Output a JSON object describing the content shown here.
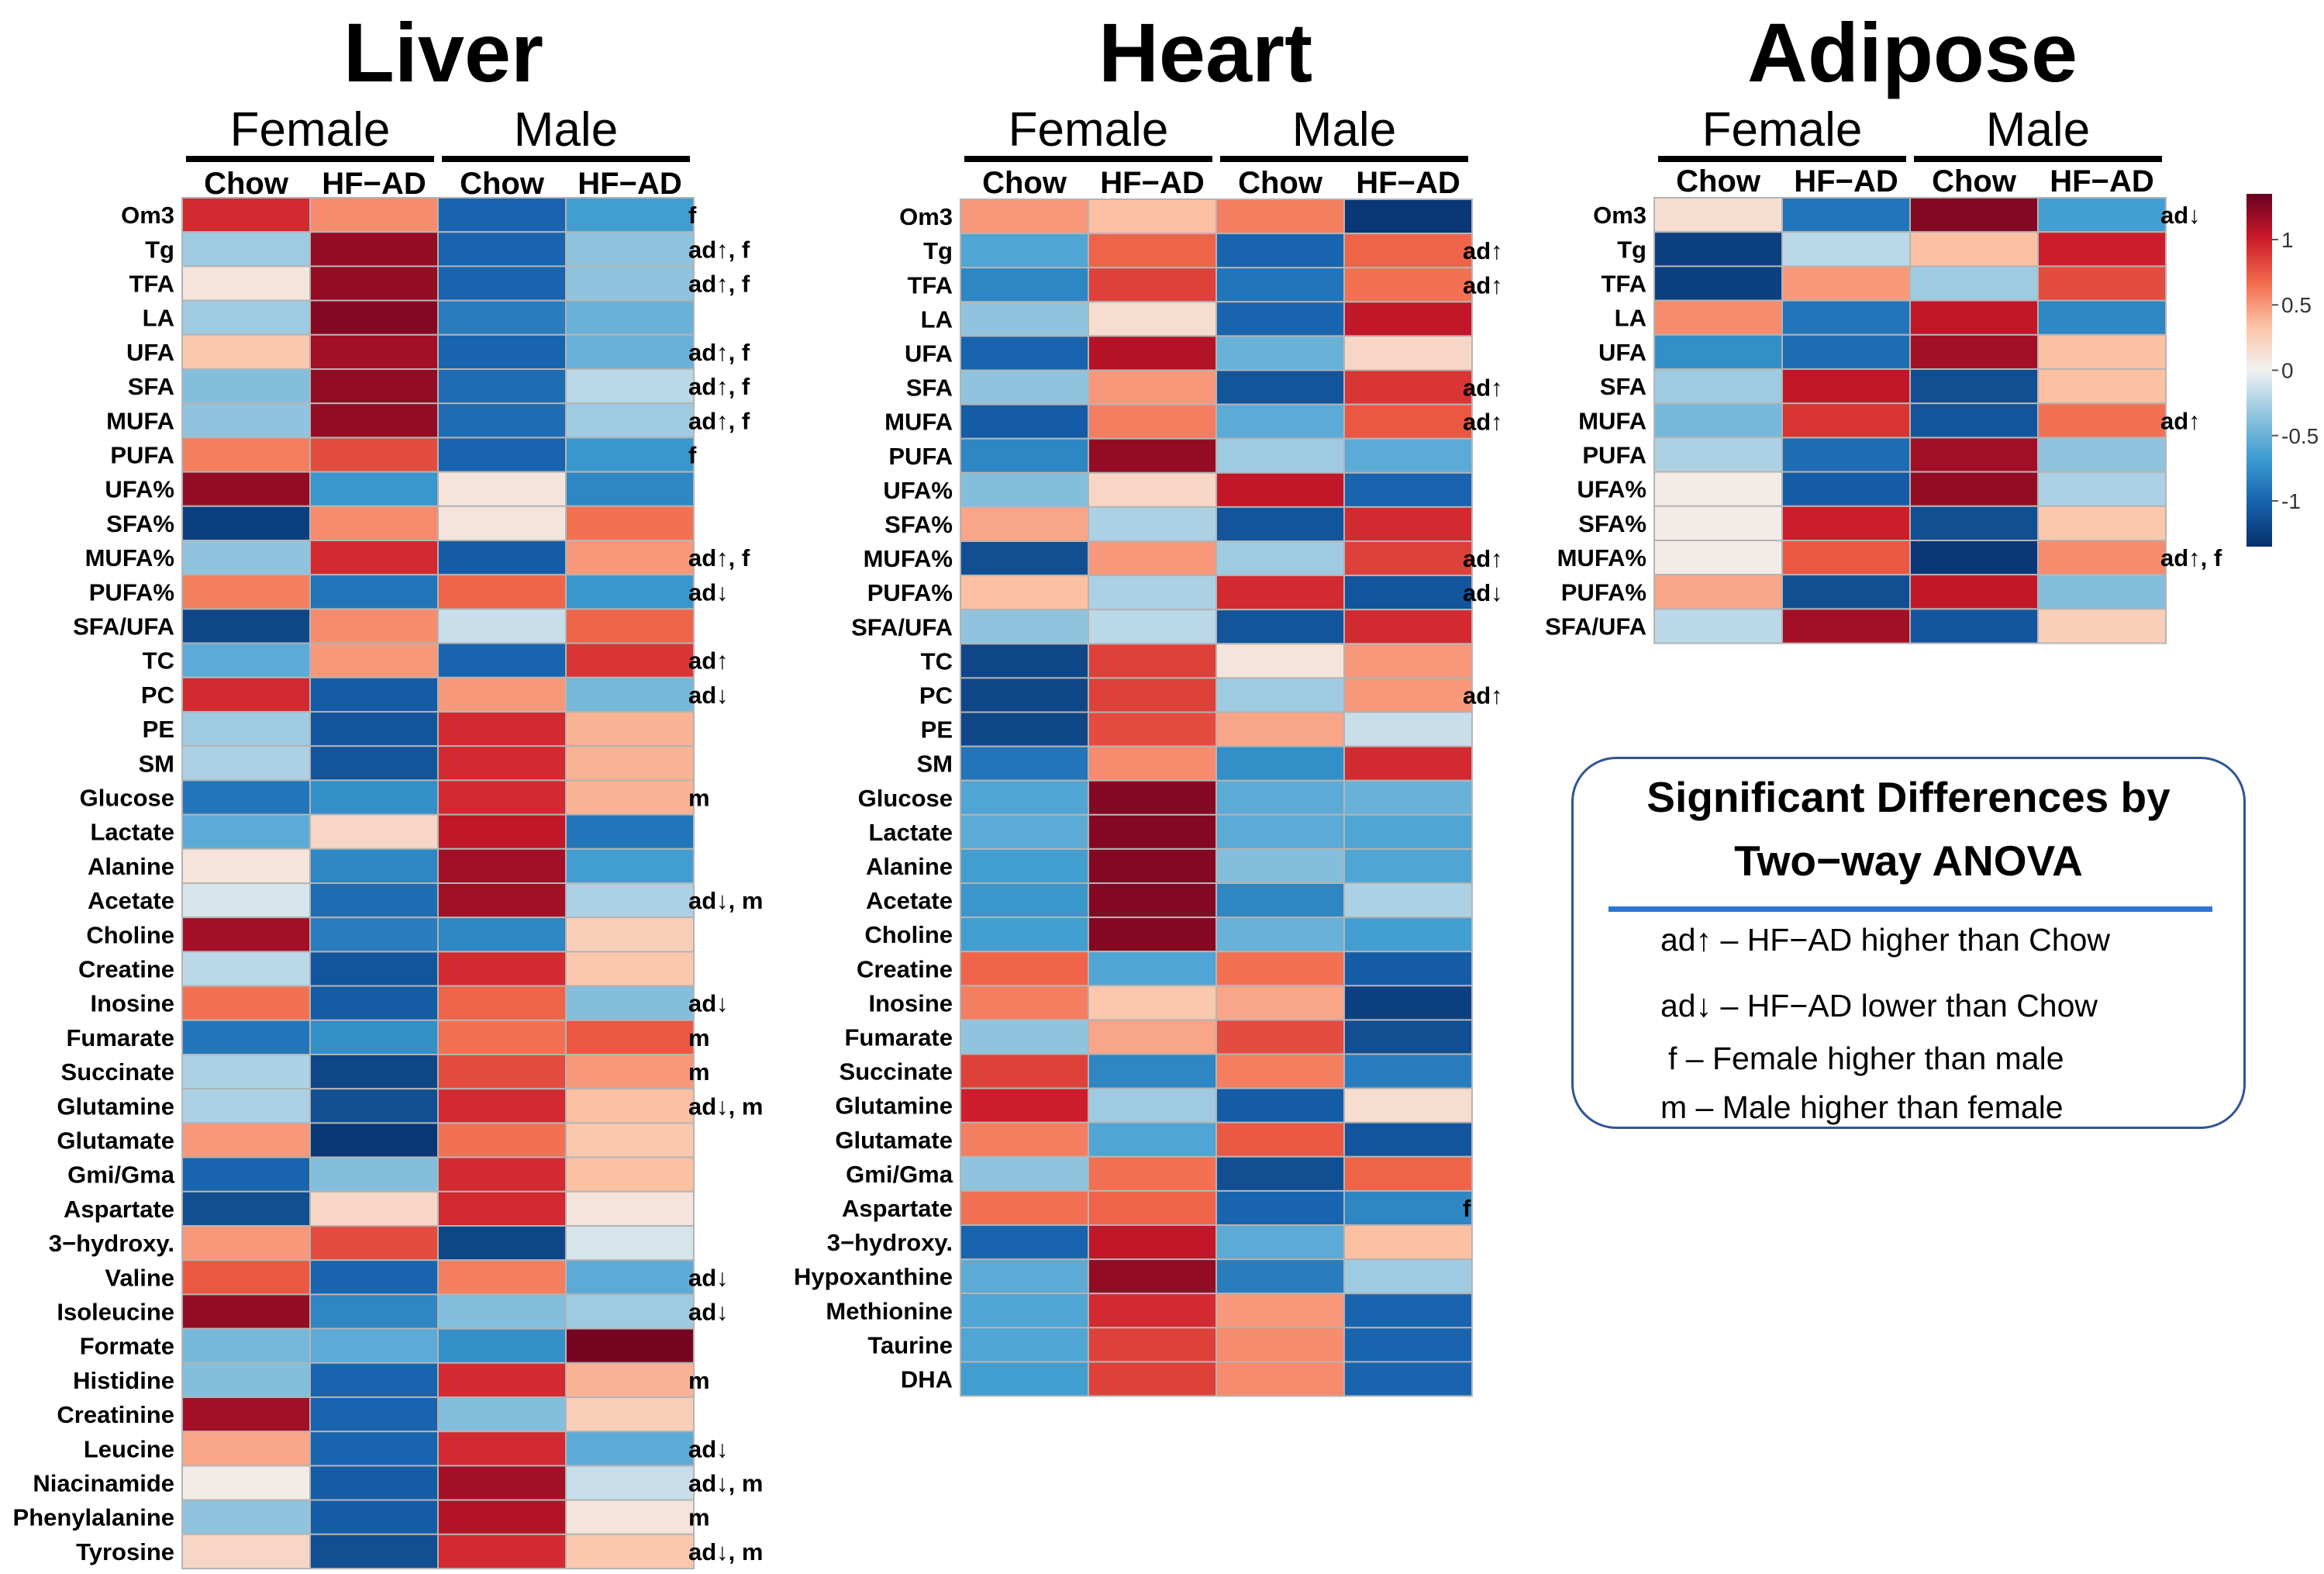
{
  "chart_data": {
    "type": "heatmap",
    "color_scale": {
      "ticks": [
        1,
        0.5,
        0,
        -0.5,
        -1
      ],
      "tick_labels": [
        "1",
        "0.5",
        "0",
        "-0.5",
        "-1"
      ],
      "range": [
        -1.35,
        1.35
      ],
      "colors": [
        "#08306b",
        "#1762ad",
        "#3c9bd0",
        "#93c6df",
        "#f2f2f2",
        "#fcc3a6",
        "#f26a4c",
        "#cc1a2a",
        "#67001f"
      ]
    },
    "panels": [
      {
        "title": "Liver",
        "groups": [
          "Female",
          "Male"
        ],
        "columns": [
          "Chow",
          "HF−AD",
          "Chow",
          "HF−AD"
        ],
        "rows": [
          {
            "label": "Om3",
            "values": [
              0.95,
              0.55,
              -1.0,
              -0.65
            ],
            "sig": "f"
          },
          {
            "label": "Tg",
            "values": [
              -0.3,
              1.2,
              -1.0,
              -0.35
            ],
            "sig": "ad↑, f"
          },
          {
            "label": "TFA",
            "values": [
              0.1,
              1.2,
              -1.0,
              -0.35
            ],
            "sig": "ad↑, f"
          },
          {
            "label": "LA",
            "values": [
              -0.3,
              1.25,
              -0.85,
              -0.5
            ],
            "sig": ""
          },
          {
            "label": "UFA",
            "values": [
              0.3,
              1.15,
              -1.0,
              -0.5
            ],
            "sig": "ad↑, f"
          },
          {
            "label": "SFA",
            "values": [
              -0.4,
              1.2,
              -0.95,
              -0.2
            ],
            "sig": "ad↑, f"
          },
          {
            "label": "MUFA",
            "values": [
              -0.35,
              1.2,
              -0.95,
              -0.3
            ],
            "sig": "ad↑, f"
          },
          {
            "label": "PUFA",
            "values": [
              0.6,
              0.8,
              -1.0,
              -0.7
            ],
            "sig": "f"
          },
          {
            "label": "UFA%",
            "values": [
              1.2,
              -0.7,
              0.1,
              -0.8
            ],
            "sig": ""
          },
          {
            "label": "SFA%",
            "values": [
              -1.25,
              0.55,
              0.1,
              0.65
            ],
            "sig": ""
          },
          {
            "label": "MUFA%",
            "values": [
              -0.35,
              0.95,
              -1.05,
              0.5
            ],
            "sig": "ad↑, f"
          },
          {
            "label": "PUFA%",
            "values": [
              0.6,
              -0.9,
              0.7,
              -0.7
            ],
            "sig": "ad↓"
          },
          {
            "label": "SFA/UFA",
            "values": [
              -1.2,
              0.55,
              -0.15,
              0.7
            ],
            "sig": ""
          },
          {
            "label": "TC",
            "values": [
              -0.55,
              0.5,
              -1.0,
              0.9
            ],
            "sig": "ad↑"
          },
          {
            "label": "PC",
            "values": [
              0.95,
              -1.05,
              0.5,
              -0.45
            ],
            "sig": "ad↓"
          },
          {
            "label": "PE",
            "values": [
              -0.3,
              -1.1,
              0.95,
              0.4
            ],
            "sig": ""
          },
          {
            "label": "SM",
            "values": [
              -0.25,
              -1.1,
              0.95,
              0.4
            ],
            "sig": ""
          },
          {
            "label": "Glucose",
            "values": [
              -0.9,
              -0.75,
              0.95,
              0.4
            ],
            "sig": "m"
          },
          {
            "label": "Lactate",
            "values": [
              -0.55,
              0.2,
              1.05,
              -0.9
            ],
            "sig": ""
          },
          {
            "label": "Alanine",
            "values": [
              0.1,
              -0.8,
              1.15,
              -0.65
            ],
            "sig": ""
          },
          {
            "label": "Acetate",
            "values": [
              -0.1,
              -0.95,
              1.15,
              -0.25
            ],
            "sig": "ad↓, m"
          },
          {
            "label": "Choline",
            "values": [
              1.15,
              -0.85,
              -0.8,
              0.25
            ],
            "sig": ""
          },
          {
            "label": "Creatine",
            "values": [
              -0.2,
              -1.1,
              0.95,
              0.3
            ],
            "sig": ""
          },
          {
            "label": "Inosine",
            "values": [
              0.65,
              -1.05,
              0.7,
              -0.4
            ],
            "sig": "ad↓"
          },
          {
            "label": "Fumarate",
            "values": [
              -0.9,
              -0.75,
              0.65,
              0.75
            ],
            "sig": "m"
          },
          {
            "label": "Succinate",
            "values": [
              -0.25,
              -1.2,
              0.8,
              0.5
            ],
            "sig": "m"
          },
          {
            "label": "Glutamine",
            "values": [
              -0.25,
              -1.15,
              0.95,
              0.35
            ],
            "sig": "ad↓, m"
          },
          {
            "label": "Glutamate",
            "values": [
              0.5,
              -1.3,
              0.65,
              0.3
            ],
            "sig": ""
          },
          {
            "label": "Gmi/Gma",
            "values": [
              -1.0,
              -0.4,
              0.95,
              0.35
            ],
            "sig": ""
          },
          {
            "label": "Aspartate",
            "values": [
              -1.15,
              0.2,
              0.95,
              0.1
            ],
            "sig": ""
          },
          {
            "label": "3−hydroxy.",
            "values": [
              0.5,
              0.8,
              -1.2,
              -0.1
            ],
            "sig": ""
          },
          {
            "label": "Valine",
            "values": [
              0.75,
              -1.0,
              0.6,
              -0.55
            ],
            "sig": "ad↓"
          },
          {
            "label": "Isoleucine",
            "values": [
              1.2,
              -0.8,
              -0.4,
              -0.3
            ],
            "sig": "ad↓"
          },
          {
            "label": "Formate",
            "values": [
              -0.45,
              -0.55,
              -0.75,
              1.3
            ],
            "sig": ""
          },
          {
            "label": "Histidine",
            "values": [
              -0.4,
              -1.0,
              0.95,
              0.4
            ],
            "sig": "m"
          },
          {
            "label": "Creatinine",
            "values": [
              1.15,
              -1.0,
              -0.4,
              0.25
            ],
            "sig": ""
          },
          {
            "label": "Leucine",
            "values": [
              0.45,
              -1.0,
              0.95,
              -0.55
            ],
            "sig": "ad↓"
          },
          {
            "label": "Niacinamide",
            "values": [
              0.05,
              -1.05,
              1.15,
              -0.15
            ],
            "sig": "ad↓, m"
          },
          {
            "label": "Phenylalanine",
            "values": [
              -0.35,
              -1.05,
              1.1,
              0.1
            ],
            "sig": "m"
          },
          {
            "label": "Tyrosine",
            "values": [
              0.2,
              -1.15,
              0.95,
              0.3
            ],
            "sig": "ad↓, m"
          }
        ]
      },
      {
        "title": "Heart",
        "groups": [
          "Female",
          "Male"
        ],
        "columns": [
          "Chow",
          "HF−AD",
          "Chow",
          "HF−AD"
        ],
        "rows": [
          {
            "label": "Om3",
            "values": [
              0.5,
              0.35,
              0.6,
              -1.3
            ],
            "sig": ""
          },
          {
            "label": "Tg",
            "values": [
              -0.6,
              0.7,
              -1.0,
              0.7
            ],
            "sig": "ad↑"
          },
          {
            "label": "TFA",
            "values": [
              -0.8,
              0.85,
              -0.9,
              0.65
            ],
            "sig": "ad↑"
          },
          {
            "label": "LA",
            "values": [
              -0.35,
              0.15,
              -1.0,
              1.05
            ],
            "sig": ""
          },
          {
            "label": "UFA",
            "values": [
              -1.0,
              1.1,
              -0.5,
              0.2
            ],
            "sig": ""
          },
          {
            "label": "SFA",
            "values": [
              -0.35,
              0.5,
              -1.1,
              0.9
            ],
            "sig": "ad↑"
          },
          {
            "label": "MUFA",
            "values": [
              -1.05,
              0.6,
              -0.55,
              0.75
            ],
            "sig": "ad↑"
          },
          {
            "label": "PUFA",
            "values": [
              -0.8,
              1.2,
              -0.3,
              -0.55
            ],
            "sig": ""
          },
          {
            "label": "UFA%",
            "values": [
              -0.4,
              0.2,
              1.05,
              -1.0
            ],
            "sig": ""
          },
          {
            "label": "SFA%",
            "values": [
              0.45,
              -0.25,
              -1.1,
              0.95
            ],
            "sig": ""
          },
          {
            "label": "MUFA%",
            "values": [
              -1.15,
              0.5,
              -0.3,
              0.85
            ],
            "sig": "ad↑"
          },
          {
            "label": "PUFA%",
            "values": [
              0.35,
              -0.25,
              0.95,
              -1.1
            ],
            "sig": "ad↓"
          },
          {
            "label": "SFA/UFA",
            "values": [
              -0.35,
              -0.2,
              -1.1,
              0.95
            ],
            "sig": ""
          },
          {
            "label": "TC",
            "values": [
              -1.2,
              0.85,
              0.1,
              0.5
            ],
            "sig": ""
          },
          {
            "label": "PC",
            "values": [
              -1.2,
              0.85,
              -0.3,
              0.5
            ],
            "sig": "ad↑"
          },
          {
            "label": "PE",
            "values": [
              -1.2,
              0.8,
              0.45,
              -0.15
            ],
            "sig": ""
          },
          {
            "label": "SM",
            "values": [
              -0.9,
              0.55,
              -0.75,
              0.95
            ],
            "sig": ""
          },
          {
            "label": "Glucose",
            "values": [
              -0.6,
              1.25,
              -0.55,
              -0.5
            ],
            "sig": ""
          },
          {
            "label": "Lactate",
            "values": [
              -0.55,
              1.25,
              -0.55,
              -0.6
            ],
            "sig": ""
          },
          {
            "label": "Alanine",
            "values": [
              -0.65,
              1.25,
              -0.4,
              -0.6
            ],
            "sig": ""
          },
          {
            "label": "Acetate",
            "values": [
              -0.7,
              1.25,
              -0.8,
              -0.25
            ],
            "sig": ""
          },
          {
            "label": "Choline",
            "values": [
              -0.65,
              1.25,
              -0.5,
              -0.65
            ],
            "sig": ""
          },
          {
            "label": "Creatine",
            "values": [
              0.7,
              -0.6,
              0.65,
              -1.05
            ],
            "sig": ""
          },
          {
            "label": "Inosine",
            "values": [
              0.6,
              0.3,
              0.45,
              -1.25
            ],
            "sig": ""
          },
          {
            "label": "Fumarate",
            "values": [
              -0.35,
              0.45,
              0.8,
              -1.15
            ],
            "sig": ""
          },
          {
            "label": "Succinate",
            "values": [
              0.85,
              -0.8,
              0.6,
              -0.85
            ],
            "sig": ""
          },
          {
            "label": "Glutamine",
            "values": [
              1.0,
              -0.3,
              -1.05,
              0.15
            ],
            "sig": ""
          },
          {
            "label": "Glutamate",
            "values": [
              0.6,
              -0.6,
              0.75,
              -1.1
            ],
            "sig": ""
          },
          {
            "label": "Gmi/Gma",
            "values": [
              -0.35,
              0.65,
              -1.15,
              0.7
            ],
            "sig": ""
          },
          {
            "label": "Aspartate",
            "values": [
              0.65,
              0.7,
              -1.0,
              -0.8
            ],
            "sig": "f"
          },
          {
            "label": "3−hydroxy.",
            "values": [
              -1.0,
              1.05,
              -0.55,
              0.35
            ],
            "sig": ""
          },
          {
            "label": "Hypoxanthine",
            "values": [
              -0.55,
              1.2,
              -0.85,
              -0.3
            ],
            "sig": ""
          },
          {
            "label": "Methionine",
            "values": [
              -0.6,
              0.95,
              0.5,
              -1.0
            ],
            "sig": ""
          },
          {
            "label": "Taurine",
            "values": [
              -0.6,
              0.85,
              0.55,
              -1.0
            ],
            "sig": ""
          },
          {
            "label": "DHA",
            "values": [
              -0.65,
              0.85,
              0.55,
              -1.0
            ],
            "sig": ""
          }
        ]
      },
      {
        "title": "Adipose",
        "groups": [
          "Female",
          "Male"
        ],
        "columns": [
          "Chow",
          "HF−AD",
          "Chow",
          "HF−AD"
        ],
        "rows": [
          {
            "label": "Om3",
            "values": [
              0.15,
              -0.9,
              1.25,
              -0.65
            ],
            "sig": "ad↓"
          },
          {
            "label": "Tg",
            "values": [
              -1.25,
              -0.2,
              0.35,
              1.0
            ],
            "sig": ""
          },
          {
            "label": "TFA",
            "values": [
              -1.25,
              0.5,
              -0.3,
              0.8
            ],
            "sig": ""
          },
          {
            "label": "LA",
            "values": [
              0.55,
              -0.9,
              1.05,
              -0.8
            ],
            "sig": ""
          },
          {
            "label": "UFA",
            "values": [
              -0.75,
              -0.95,
              1.15,
              0.35
            ],
            "sig": ""
          },
          {
            "label": "SFA",
            "values": [
              -0.3,
              1.05,
              -1.15,
              0.35
            ],
            "sig": ""
          },
          {
            "label": "MUFA",
            "values": [
              -0.45,
              0.9,
              -1.1,
              0.65
            ],
            "sig": "ad↑"
          },
          {
            "label": "PUFA",
            "values": [
              -0.25,
              -0.95,
              1.15,
              -0.35
            ],
            "sig": ""
          },
          {
            "label": "UFA%",
            "values": [
              0.05,
              -1.05,
              1.2,
              -0.25
            ],
            "sig": ""
          },
          {
            "label": "SFA%",
            "values": [
              0.05,
              1.0,
              -1.15,
              0.3
            ],
            "sig": ""
          },
          {
            "label": "MUFA%",
            "values": [
              0.05,
              0.75,
              -1.3,
              0.55
            ],
            "sig": "ad↑, f"
          },
          {
            "label": "PUFA%",
            "values": [
              0.45,
              -1.15,
              1.05,
              -0.4
            ],
            "sig": ""
          },
          {
            "label": "SFA/UFA",
            "values": [
              -0.2,
              1.15,
              -1.1,
              0.25
            ],
            "sig": ""
          }
        ]
      }
    ]
  },
  "legend": {
    "title_line1": "Significant Differences by",
    "title_line2": "Two−way ANOVA",
    "items": [
      "ad↑  –  HF−AD higher than Chow",
      "ad↓  –  HF−AD lower than Chow",
      "f – Female higher than male",
      "m – Male higher than female"
    ]
  }
}
